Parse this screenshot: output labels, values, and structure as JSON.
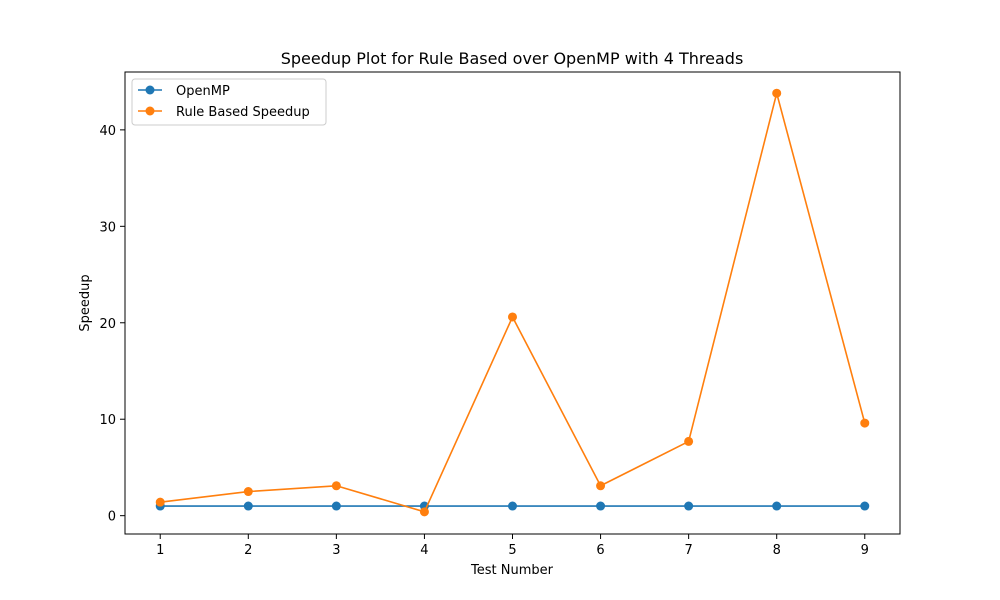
{
  "chart_data": {
    "type": "line",
    "title": "Speedup Plot for Rule Based over OpenMP with 4 Threads",
    "xlabel": "Test Number",
    "ylabel": "Speedup",
    "x": [
      1,
      2,
      3,
      4,
      5,
      6,
      7,
      8,
      9
    ],
    "xlim": [
      0.6,
      9.4
    ],
    "ylim": [
      -1.9,
      46.0
    ],
    "xticks": [
      "1",
      "2",
      "3",
      "4",
      "5",
      "6",
      "7",
      "8",
      "9"
    ],
    "yticks": [
      "0",
      "10",
      "20",
      "30",
      "40"
    ],
    "grid": false,
    "legend_position": "upper-left",
    "series": [
      {
        "name": "OpenMP",
        "color": "#1f77b4",
        "marker": "circle",
        "values": [
          1,
          1,
          1,
          1,
          1,
          1,
          1,
          1,
          1
        ]
      },
      {
        "name": "Rule Based Speedup",
        "color": "#ff7f0e",
        "marker": "circle",
        "values": [
          1.4,
          2.5,
          3.1,
          0.4,
          20.6,
          3.1,
          7.7,
          43.8,
          9.6
        ]
      }
    ]
  }
}
